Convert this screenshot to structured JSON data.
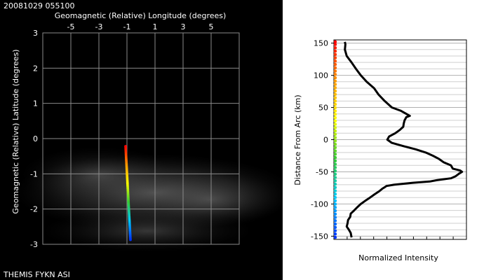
{
  "timestamp": "20081029 055100",
  "footer": "THEMIS FYKN ASI",
  "chart_data": [
    {
      "type": "scatter",
      "xlabel": "Geomagnetic (Relative) Longitude (degrees)",
      "ylabel": "Geomagnetic (Relative) Latitude (degrees)",
      "xlim": [
        -7,
        7
      ],
      "ylim": [
        -3,
        3
      ],
      "xticks": [
        "-5",
        "-3",
        "-1",
        "1",
        "3",
        "5"
      ],
      "xtick_values": [
        -5,
        -3,
        -1,
        1,
        3,
        5
      ],
      "yticks": [
        "3",
        "2",
        "1",
        "0",
        "-1",
        "-2",
        "-3"
      ],
      "ytick_values": [
        3,
        2,
        1,
        0,
        -1,
        -2,
        -3
      ],
      "grid": true,
      "x": [
        -1.1,
        -1.03,
        -0.96,
        -0.89,
        -0.82,
        -0.75
      ],
      "y": [
        -0.22,
        -0.75,
        -1.28,
        -1.81,
        -2.34,
        -2.87
      ],
      "colormap": "rainbow",
      "colors": [
        "#ff0000",
        "#ff9900",
        "#ffff00",
        "#33cc33",
        "#00ccff",
        "#0033ff"
      ]
    },
    {
      "type": "line",
      "xlabel": "Normalized Intensity",
      "ylabel": "Distance From Arc (km)",
      "ylim": [
        -155,
        155
      ],
      "xlim": [
        0,
        1
      ],
      "yticks": [
        "150",
        "100",
        "50",
        "0",
        "-50",
        "-100",
        "-150"
      ],
      "ytick_values": [
        150,
        100,
        50,
        0,
        -50,
        -100,
        -150
      ],
      "grid": true,
      "profile": {
        "y": [
          152,
          148,
          140,
          130,
          120,
          110,
          100,
          90,
          80,
          70,
          60,
          50,
          45,
          40,
          37,
          35,
          30,
          25,
          20,
          15,
          10,
          5,
          0,
          -5,
          -10,
          -15,
          -20,
          -25,
          -30,
          -35,
          -40,
          -45,
          -48,
          -50,
          -53,
          -57,
          -60,
          -63,
          -65,
          -67,
          -70,
          -72,
          -74,
          -76,
          -80,
          -85,
          -90,
          -95,
          -100,
          -105,
          -110,
          -115,
          -120,
          -125,
          -130,
          -135,
          -140,
          -145,
          -152
        ],
        "x": [
          0.08,
          0.09,
          0.08,
          0.1,
          0.13,
          0.17,
          0.2,
          0.25,
          0.3,
          0.34,
          0.38,
          0.44,
          0.5,
          0.55,
          0.57,
          0.55,
          0.53,
          0.53,
          0.52,
          0.5,
          0.46,
          0.42,
          0.4,
          0.44,
          0.52,
          0.62,
          0.69,
          0.75,
          0.79,
          0.83,
          0.88,
          0.9,
          0.95,
          0.97,
          0.94,
          0.92,
          0.88,
          0.78,
          0.72,
          0.6,
          0.45,
          0.4,
          0.38,
          0.37,
          0.34,
          0.31,
          0.27,
          0.24,
          0.2,
          0.18,
          0.15,
          0.13,
          0.12,
          0.11,
          0.1,
          0.1,
          0.11,
          0.13,
          0.13
        ]
      },
      "colorbar": {
        "colors": [
          "#ff0000",
          "#ff9900",
          "#ffff00",
          "#33cc33",
          "#00ccff",
          "#0033ff"
        ]
      }
    }
  ]
}
